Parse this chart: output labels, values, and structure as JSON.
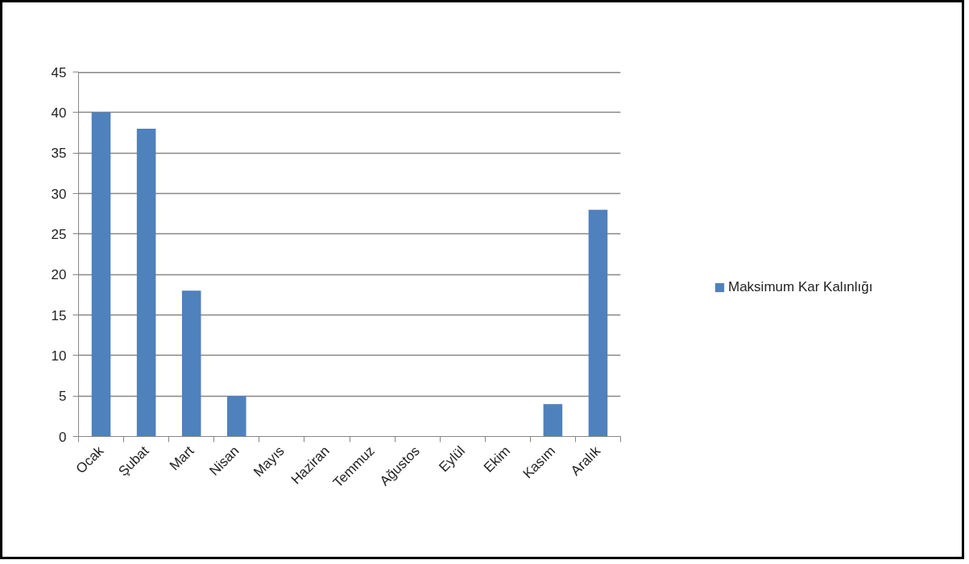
{
  "chart_data": {
    "type": "bar",
    "categories": [
      "Ocak",
      "Şubat",
      "Mart",
      "Nisan",
      "Mayıs",
      "Haziran",
      "Temmuz",
      "Ağustos",
      "Eylül",
      "Ekim",
      "Kasım",
      "Aralık"
    ],
    "series": [
      {
        "name": "Maksimum Kar Kalınlığı",
        "color": "#4f81bd",
        "values": [
          40,
          38,
          18,
          5,
          0,
          0,
          0,
          0,
          0,
          0,
          4,
          28
        ]
      }
    ],
    "ylim": [
      0,
      45
    ],
    "yticks": [
      0,
      5,
      10,
      15,
      20,
      25,
      30,
      35,
      40,
      45
    ],
    "grid": "y",
    "legend": "right"
  }
}
